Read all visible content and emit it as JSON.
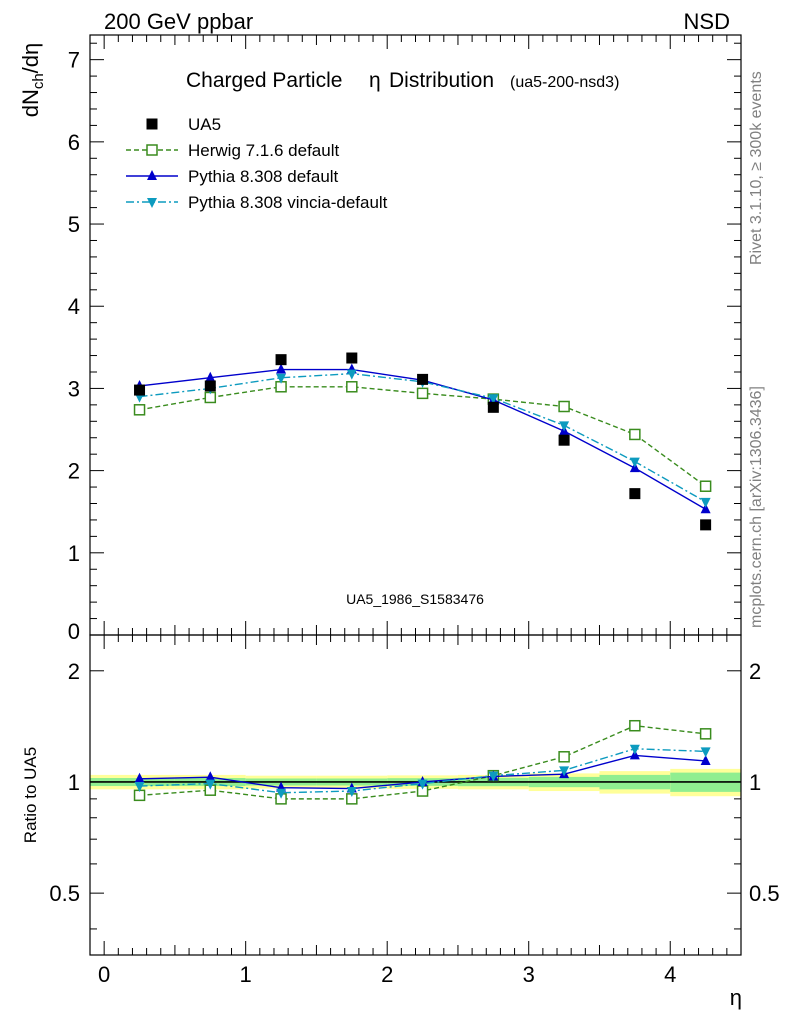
{
  "header": {
    "left_label": "200 GeV ppbar",
    "right_label": "NSD"
  },
  "side_labels": {
    "upper": "Rivet 3.1.10, ≥ 300k events",
    "lower": "mcplots.cern.ch [arXiv:1306.3436]"
  },
  "chart_data": [
    {
      "type": "scatter",
      "title": "Charged Particle",
      "title_symbol": "η",
      "title_suffix": "Distribution",
      "subtitle": "(ua5-200-nsd3)",
      "ylabel": "dN_ch/dη",
      "watermark": "UA5_1986_S1583476",
      "xlim": [
        -0.1,
        4.5
      ],
      "ylim": [
        0,
        7.3
      ],
      "y_ticks": [
        1,
        2,
        3,
        4,
        5,
        6,
        7
      ],
      "y_tick_labels": [
        "1",
        "2",
        "3",
        "4",
        "5",
        "6",
        "7"
      ],
      "y_cut_label": "0",
      "legend_position": "top-left",
      "x": [
        0.25,
        0.75,
        1.25,
        1.75,
        2.25,
        2.75,
        3.25,
        3.75,
        4.25
      ],
      "series": [
        {
          "name": "UA5",
          "color": "#000000",
          "marker": "square-filled",
          "line": "none",
          "values": [
            2.98,
            3.03,
            3.35,
            3.37,
            3.11,
            2.77,
            2.37,
            1.72,
            1.34
          ]
        },
        {
          "name": "Herwig 7.1.6 default",
          "color": "#3a8c1e",
          "marker": "square-open",
          "line": "dashed",
          "values": [
            2.74,
            2.89,
            3.02,
            3.02,
            2.94,
            2.87,
            2.78,
            2.44,
            1.81
          ]
        },
        {
          "name": "Pythia 8.308 default",
          "color": "#0000cc",
          "marker": "triangle-up",
          "line": "solid",
          "values": [
            3.03,
            3.13,
            3.23,
            3.23,
            3.1,
            2.86,
            2.48,
            2.03,
            1.53
          ]
        },
        {
          "name": "Pythia 8.308 vincia-default",
          "color": "#0d9bbf",
          "marker": "triangle-down",
          "line": "dashdot",
          "values": [
            2.9,
            3.0,
            3.13,
            3.18,
            3.08,
            2.88,
            2.55,
            2.11,
            1.62
          ]
        }
      ]
    },
    {
      "type": "scatter",
      "ylabel": "Ratio to UA5",
      "xlabel": "η",
      "xlim": [
        -0.1,
        4.5
      ],
      "ylim": [
        0.34,
        2.5
      ],
      "y_scale": "log",
      "x_ticks": [
        0,
        1,
        2,
        3,
        4
      ],
      "x_tick_labels": [
        "0",
        "1",
        "2",
        "3",
        "4"
      ],
      "y_tick_labels": [
        {
          "value": 0.5,
          "label": "0.5"
        },
        {
          "value": 1,
          "label": "1"
        },
        {
          "value": 2,
          "label": "2"
        }
      ],
      "x": [
        0.25,
        0.75,
        1.25,
        1.75,
        2.25,
        2.75,
        3.25,
        3.75,
        4.25
      ],
      "uncertainty_bands": {
        "bins": [
          [
            -0.1,
            0.5
          ],
          [
            0.5,
            1.0
          ],
          [
            1.0,
            1.5
          ],
          [
            1.5,
            2.0
          ],
          [
            2.0,
            2.5
          ],
          [
            2.5,
            3.0
          ],
          [
            3.0,
            3.5
          ],
          [
            3.5,
            4.0
          ],
          [
            4.0,
            4.5
          ]
        ],
        "inner": {
          "color": "#90ee90",
          "halfwidth": [
            0.025,
            0.025,
            0.022,
            0.022,
            0.024,
            0.026,
            0.032,
            0.045,
            0.06
          ]
        },
        "outer": {
          "color": "#ffff99",
          "halfwidth": [
            0.045,
            0.045,
            0.04,
            0.04,
            0.042,
            0.045,
            0.055,
            0.07,
            0.085
          ]
        }
      },
      "series": [
        {
          "name": "Herwig 7.1.6 default",
          "color": "#3a8c1e",
          "marker": "square-open",
          "line": "dashed",
          "values": [
            0.92,
            0.95,
            0.9,
            0.9,
            0.945,
            1.04,
            1.17,
            1.42,
            1.35
          ]
        },
        {
          "name": "Pythia 8.308 default",
          "color": "#0000cc",
          "marker": "triangle-up",
          "line": "solid",
          "values": [
            1.02,
            1.03,
            0.965,
            0.96,
            1.0,
            1.035,
            1.05,
            1.18,
            1.14
          ]
        },
        {
          "name": "Pythia 8.308 vincia-default",
          "color": "#0d9bbf",
          "marker": "triangle-down",
          "line": "dashdot",
          "values": [
            0.975,
            0.99,
            0.935,
            0.945,
            0.99,
            1.04,
            1.075,
            1.23,
            1.21
          ]
        }
      ]
    }
  ]
}
